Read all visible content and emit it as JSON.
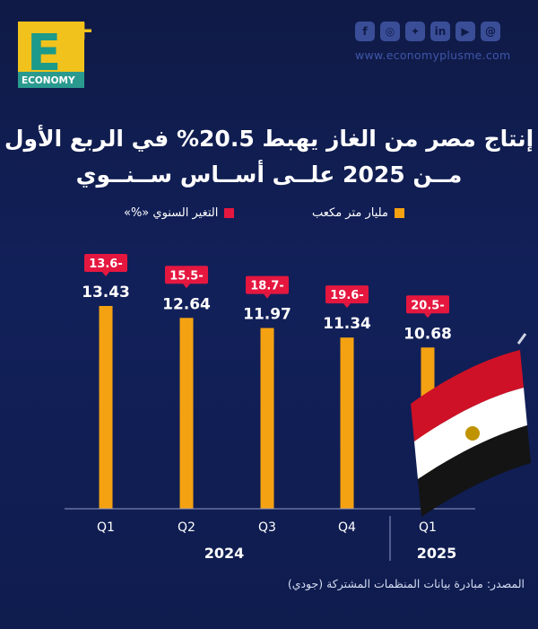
{
  "brand": {
    "logo_letter": "E",
    "logo_plus": "+",
    "logo_word": "ECONOMY",
    "website": "www.economyplusme.com"
  },
  "social_icons": [
    "facebook-icon",
    "instagram-icon",
    "twitter-icon",
    "linkedin-icon",
    "youtube-icon",
    "threads-icon"
  ],
  "colors": {
    "bar": "#f5a212",
    "badge": "#e5173f",
    "background": "#12205a",
    "logo_yellow": "#f1c21b",
    "logo_teal": "#2a9a8f"
  },
  "title": {
    "line1": "إنتاج مصر من الغاز يهبط 20.5% في الربع الأول",
    "line2": "مــن 2025 علــى أســاس ســنــوي"
  },
  "legend": {
    "bars": "مليار متر مكعب",
    "change": "التغير السنوي «%»"
  },
  "chart_data": {
    "type": "bar",
    "categories": [
      "Q1",
      "Q2",
      "Q3",
      "Q4",
      "Q1"
    ],
    "groups": [
      {
        "label": "2024",
        "categories": [
          0,
          1,
          2,
          3
        ]
      },
      {
        "label": "2025",
        "categories": [
          4
        ]
      }
    ],
    "series": [
      {
        "name": "مليار متر مكعب",
        "values": [
          13.43,
          12.64,
          11.97,
          11.34,
          10.68
        ]
      },
      {
        "name": "التغير السنوي «%»",
        "values": [
          -13.6,
          -15.5,
          -18.7,
          -19.6,
          -20.5
        ]
      }
    ],
    "value_labels": [
      "13.43",
      "12.64",
      "11.97",
      "11.34",
      "10.68"
    ],
    "change_labels": [
      "13.6-",
      "15.5-",
      "18.7-",
      "19.6-",
      "20.5-"
    ],
    "ylim": [
      0,
      16
    ]
  },
  "source": "المصدر: مبادرة بيانات المنظمات المشتركة (جودي)"
}
